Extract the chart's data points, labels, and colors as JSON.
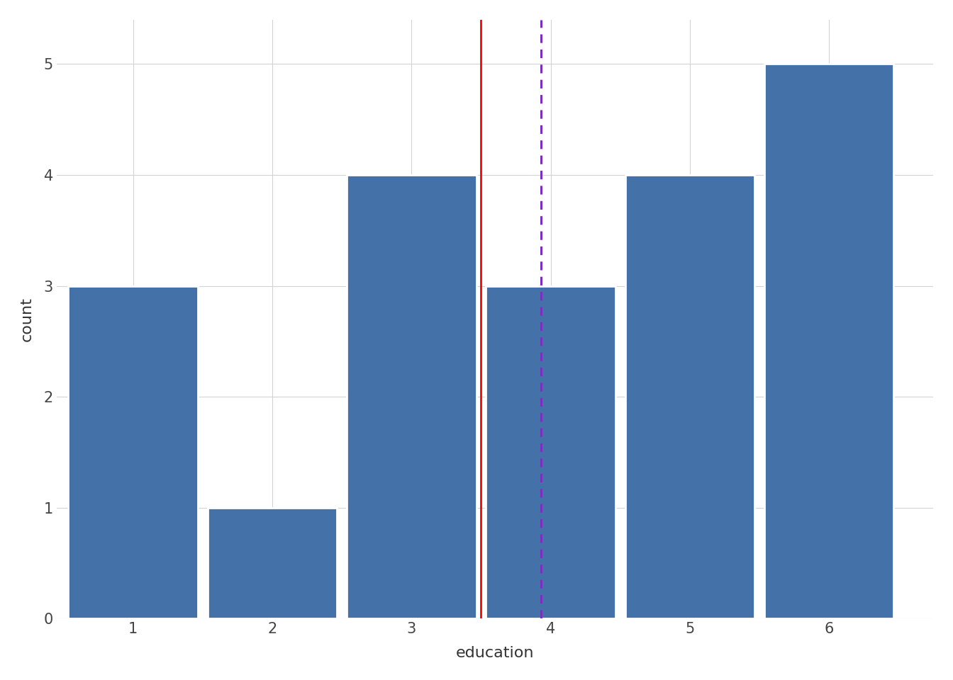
{
  "categories": [
    1,
    2,
    3,
    4,
    5,
    6
  ],
  "counts": [
    3,
    1,
    4,
    3,
    4,
    5
  ],
  "bar_color": "#4472a8",
  "bar_width": 0.93,
  "bar_edge_color": "white",
  "bar_edge_width": 2.0,
  "xlabel": "education",
  "ylabel": "count",
  "xlim": [
    0.45,
    6.75
  ],
  "ylim": [
    0,
    5.4
  ],
  "yticks": [
    0,
    1,
    2,
    3,
    4,
    5
  ],
  "xticks": [
    1,
    2,
    3,
    4,
    5,
    6
  ],
  "red_line_x": 3.5,
  "purple_line_x": 3.93,
  "background_color": "#ffffff",
  "panel_bg_color": "#ffffff",
  "grid_color": "#d3d3d3",
  "axis_label_fontsize": 16,
  "tick_fontsize": 15
}
